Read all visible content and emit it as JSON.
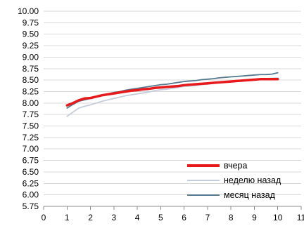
{
  "chart_data": {
    "type": "line",
    "title": "",
    "xlabel": "",
    "ylabel": "",
    "xlim": [
      0,
      11
    ],
    "ylim": [
      5.75,
      10.0
    ],
    "x_ticks": [
      "0",
      "1",
      "2",
      "3",
      "4",
      "5",
      "6",
      "7",
      "8",
      "9",
      "10",
      "11"
    ],
    "y_ticks": [
      "5.75",
      "6.00",
      "6.25",
      "6.50",
      "6.75",
      "7.00",
      "7.25",
      "7.50",
      "7.75",
      "8.00",
      "8.25",
      "8.50",
      "8.75",
      "9.00",
      "9.25",
      "9.50",
      "9.75",
      "10.00"
    ],
    "grid": "horizontal",
    "legend_position": "bottom-right",
    "series": [
      {
        "name": "вчера",
        "color": "#e8191b",
        "points": [
          [
            1.0,
            7.95
          ],
          [
            1.25,
            8.0
          ],
          [
            1.5,
            8.06
          ],
          [
            1.75,
            8.1
          ],
          [
            2.0,
            8.11
          ],
          [
            2.25,
            8.14
          ],
          [
            2.5,
            8.17
          ],
          [
            2.75,
            8.19
          ],
          [
            3.0,
            8.21
          ],
          [
            3.25,
            8.23
          ],
          [
            3.5,
            8.25
          ],
          [
            3.75,
            8.27
          ],
          [
            4.0,
            8.28
          ],
          [
            4.25,
            8.3
          ],
          [
            4.5,
            8.31
          ],
          [
            4.75,
            8.33
          ],
          [
            5.0,
            8.34
          ],
          [
            5.25,
            8.35
          ],
          [
            5.5,
            8.36
          ],
          [
            5.75,
            8.37
          ],
          [
            6.0,
            8.39
          ],
          [
            6.25,
            8.4
          ],
          [
            6.5,
            8.41
          ],
          [
            6.75,
            8.42
          ],
          [
            7.0,
            8.43
          ],
          [
            7.25,
            8.44
          ],
          [
            7.5,
            8.45
          ],
          [
            7.75,
            8.46
          ],
          [
            8.0,
            8.47
          ],
          [
            8.25,
            8.48
          ],
          [
            8.5,
            8.49
          ],
          [
            8.75,
            8.5
          ],
          [
            9.0,
            8.51
          ],
          [
            9.25,
            8.52
          ],
          [
            9.5,
            8.52
          ],
          [
            9.75,
            8.52
          ],
          [
            10.0,
            8.52
          ]
        ]
      },
      {
        "name": "неделю назад",
        "color": "#c5ccda",
        "points": [
          [
            1.0,
            7.71
          ],
          [
            1.25,
            7.8
          ],
          [
            1.5,
            7.89
          ],
          [
            1.75,
            7.93
          ],
          [
            2.0,
            7.96
          ],
          [
            2.25,
            8.0
          ],
          [
            2.5,
            8.04
          ],
          [
            2.75,
            8.07
          ],
          [
            3.0,
            8.1
          ],
          [
            3.25,
            8.13
          ],
          [
            3.5,
            8.16
          ],
          [
            3.75,
            8.18
          ],
          [
            4.0,
            8.2
          ],
          [
            4.25,
            8.22
          ],
          [
            4.5,
            8.24
          ],
          [
            4.75,
            8.27
          ],
          [
            5.0,
            8.29
          ],
          [
            5.25,
            8.3
          ],
          [
            5.5,
            8.32
          ],
          [
            5.75,
            8.34
          ],
          [
            6.0,
            8.36
          ],
          [
            6.25,
            8.37
          ],
          [
            6.5,
            8.38
          ],
          [
            6.75,
            8.4
          ],
          [
            7.0,
            8.41
          ],
          [
            7.25,
            8.43
          ],
          [
            7.5,
            8.44
          ],
          [
            7.75,
            8.45
          ],
          [
            8.0,
            8.46
          ],
          [
            8.25,
            8.47
          ],
          [
            8.5,
            8.48
          ],
          [
            8.75,
            8.49
          ],
          [
            9.0,
            8.51
          ],
          [
            9.25,
            8.52
          ],
          [
            9.5,
            8.53
          ],
          [
            9.75,
            8.54
          ],
          [
            10.0,
            8.55
          ]
        ]
      },
      {
        "name": "месяц назад",
        "color": "#55788e",
        "points": [
          [
            1.0,
            7.89
          ],
          [
            1.25,
            7.97
          ],
          [
            1.5,
            8.04
          ],
          [
            1.75,
            8.07
          ],
          [
            2.0,
            8.1
          ],
          [
            2.25,
            8.14
          ],
          [
            2.5,
            8.17
          ],
          [
            2.75,
            8.2
          ],
          [
            3.0,
            8.23
          ],
          [
            3.25,
            8.25
          ],
          [
            3.5,
            8.28
          ],
          [
            3.75,
            8.3
          ],
          [
            4.0,
            8.32
          ],
          [
            4.25,
            8.34
          ],
          [
            4.5,
            8.36
          ],
          [
            4.75,
            8.38
          ],
          [
            5.0,
            8.4
          ],
          [
            5.25,
            8.41
          ],
          [
            5.5,
            8.43
          ],
          [
            5.75,
            8.45
          ],
          [
            6.0,
            8.47
          ],
          [
            6.25,
            8.48
          ],
          [
            6.5,
            8.49
          ],
          [
            6.75,
            8.51
          ],
          [
            7.0,
            8.52
          ],
          [
            7.25,
            8.53
          ],
          [
            7.5,
            8.55
          ],
          [
            7.75,
            8.56
          ],
          [
            8.0,
            8.57
          ],
          [
            8.25,
            8.58
          ],
          [
            8.5,
            8.59
          ],
          [
            8.75,
            8.6
          ],
          [
            9.0,
            8.61
          ],
          [
            9.25,
            8.62
          ],
          [
            9.5,
            8.62
          ],
          [
            9.75,
            8.63
          ],
          [
            10.0,
            8.66
          ]
        ]
      }
    ]
  }
}
